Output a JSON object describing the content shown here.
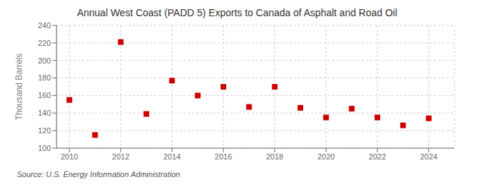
{
  "chart_data": {
    "type": "scatter",
    "title": "Annual West Coast (PADD 5) Exports to Canada of Asphalt and Road Oil",
    "ylabel": "Thousand Barrels",
    "annotations": [
      "Source: U.S. Energy Information Administration"
    ],
    "x": [
      2010,
      2011,
      2012,
      2013,
      2014,
      2015,
      2016,
      2017,
      2018,
      2019,
      2020,
      2021,
      2022,
      2023,
      2024
    ],
    "values": [
      155,
      115,
      221,
      139,
      177,
      160,
      170,
      147,
      170,
      146,
      135,
      145,
      135,
      126,
      134
    ],
    "color": "#cc0000",
    "marker": "square",
    "xlim": [
      2009.5,
      2025.0
    ],
    "ylim": [
      100,
      240
    ],
    "xticks": [
      2010,
      2012,
      2014,
      2016,
      2018,
      2020,
      2022,
      2024
    ],
    "yticks": [
      100,
      120,
      140,
      160,
      180,
      200,
      220,
      240
    ],
    "grid": true
  }
}
